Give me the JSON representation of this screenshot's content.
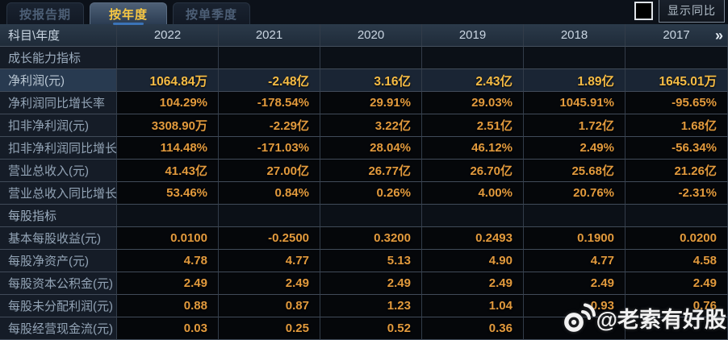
{
  "tabs": [
    {
      "label": "按报告期",
      "active": false
    },
    {
      "label": "按年度",
      "active": true
    },
    {
      "label": "按单季度",
      "active": false
    }
  ],
  "controls": {
    "compare_checkbox_checked": false,
    "compare_label": "显示同比"
  },
  "table": {
    "corner_label": "科目\\年度",
    "years": [
      "2022",
      "2021",
      "2020",
      "2019",
      "2018",
      "2017"
    ],
    "more_icon": "»",
    "rows": [
      {
        "type": "section",
        "label": "成长能力指标",
        "values": [
          "",
          "",
          "",
          "",
          "",
          ""
        ]
      },
      {
        "type": "highlight",
        "label": "净利润(元)",
        "values": [
          "1064.84万",
          "-2.48亿",
          "3.16亿",
          "2.43亿",
          "1.89亿",
          "1645.01万"
        ]
      },
      {
        "type": "normal",
        "label": "净利润同比增长率",
        "values": [
          "104.29%",
          "-178.54%",
          "29.91%",
          "29.03%",
          "1045.91%",
          "-95.65%"
        ]
      },
      {
        "type": "normal",
        "label": "扣非净利润(元)",
        "values": [
          "3308.90万",
          "-2.29亿",
          "3.22亿",
          "2.51亿",
          "1.72亿",
          "1.68亿"
        ]
      },
      {
        "type": "normal",
        "label": "扣非净利润同比增长率",
        "values": [
          "114.48%",
          "-171.03%",
          "28.04%",
          "46.12%",
          "2.49%",
          "-56.34%"
        ]
      },
      {
        "type": "normal",
        "label": "营业总收入(元)",
        "values": [
          "41.43亿",
          "27.00亿",
          "26.77亿",
          "26.70亿",
          "25.68亿",
          "21.26亿"
        ]
      },
      {
        "type": "normal",
        "label": "营业总收入同比增长率",
        "values": [
          "53.46%",
          "0.84%",
          "0.26%",
          "4.00%",
          "20.76%",
          "-2.31%"
        ]
      },
      {
        "type": "section",
        "label": "每股指标",
        "values": [
          "",
          "",
          "",
          "",
          "",
          ""
        ]
      },
      {
        "type": "normal",
        "label": "基本每股收益(元)",
        "values": [
          "0.0100",
          "-0.2500",
          "0.3200",
          "0.2493",
          "0.1900",
          "0.0200"
        ]
      },
      {
        "type": "normal",
        "label": "每股净资产(元)",
        "values": [
          "4.78",
          "4.77",
          "5.13",
          "4.90",
          "4.77",
          "4.58"
        ]
      },
      {
        "type": "normal",
        "label": "每股资本公积金(元)",
        "values": [
          "2.49",
          "2.49",
          "2.49",
          "2.49",
          "2.49",
          "2.49"
        ]
      },
      {
        "type": "normal",
        "label": "每股未分配利润(元)",
        "values": [
          "0.88",
          "0.87",
          "1.23",
          "1.04",
          "0.93",
          "0.76"
        ]
      },
      {
        "type": "normal",
        "label": "每股经营现金流(元)",
        "values": [
          "0.03",
          "0.25",
          "0.52",
          "0.36",
          "",
          ""
        ]
      }
    ]
  },
  "watermark": {
    "text": "@老索有好股",
    "icon": "weibo"
  },
  "colors": {
    "value_orange": "#e29a3d",
    "highlight_gold": "#f6bc45",
    "tab_active_text": "#f8c843",
    "header_bg": "#24313f",
    "page_bg": "#0a0e14"
  }
}
